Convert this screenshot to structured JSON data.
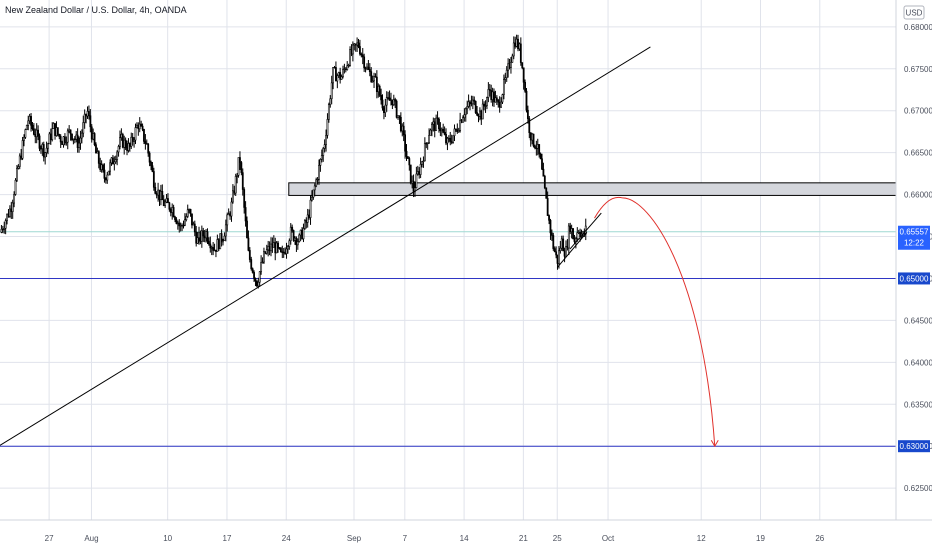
{
  "chart_data": {
    "type": "candlestick",
    "title": "New Zealand Dollar / U.S. Dollar, 4h, OANDA",
    "currency_label": "USD",
    "y_ticks": [
      "0.68000",
      "0.67500",
      "0.67000",
      "0.66500",
      "0.66000",
      "0.65500",
      "0.65000",
      "0.64500",
      "0.64000",
      "0.63500",
      "0.63000",
      "0.62500"
    ],
    "y_tick_values": [
      0.68,
      0.675,
      0.67,
      0.665,
      0.66,
      0.655,
      0.65,
      0.645,
      0.64,
      0.635,
      0.63,
      0.625
    ],
    "ylim": [
      0.6212,
      0.6832
    ],
    "x_ticks": [
      "27",
      "Aug",
      "10",
      "17",
      "24",
      "Sep",
      "7",
      "14",
      "21",
      "25",
      "Oct",
      "12",
      "19",
      "26"
    ],
    "x_tick_days": [
      -4,
      1,
      10,
      17,
      24,
      32,
      38,
      45,
      52,
      56,
      62,
      73,
      80,
      87
    ],
    "xlim": [
      -9.8,
      96.0
    ],
    "current_price": "0.65557",
    "countdown": "12:22",
    "support_levels": [
      "0.65000",
      "0.63000"
    ],
    "resistance_zone": [
      0.6599,
      0.6614
    ],
    "price_path": [
      {
        "day": -9.8,
        "price": 0.6555
      },
      {
        "day": -8.5,
        "price": 0.6585
      },
      {
        "day": -7.5,
        "price": 0.664
      },
      {
        "day": -6.5,
        "price": 0.669
      },
      {
        "day": -5.5,
        "price": 0.667
      },
      {
        "day": -4.5,
        "price": 0.665
      },
      {
        "day": -3.5,
        "price": 0.668
      },
      {
        "day": -2.5,
        "price": 0.6665
      },
      {
        "day": -1.5,
        "price": 0.6675
      },
      {
        "day": -0.5,
        "price": 0.666
      },
      {
        "day": 0.5,
        "price": 0.67
      },
      {
        "day": 1.5,
        "price": 0.665
      },
      {
        "day": 2.5,
        "price": 0.662
      },
      {
        "day": 3.5,
        "price": 0.664
      },
      {
        "day": 4.5,
        "price": 0.6665
      },
      {
        "day": 5.5,
        "price": 0.6655
      },
      {
        "day": 6.5,
        "price": 0.6685
      },
      {
        "day": 7.5,
        "price": 0.666
      },
      {
        "day": 8.5,
        "price": 0.661
      },
      {
        "day": 9.5,
        "price": 0.659
      },
      {
        "day": 10.5,
        "price": 0.6585
      },
      {
        "day": 11.5,
        "price": 0.656
      },
      {
        "day": 12.5,
        "price": 0.658
      },
      {
        "day": 13.5,
        "price": 0.6545
      },
      {
        "day": 14.5,
        "price": 0.6555
      },
      {
        "day": 15.5,
        "price": 0.6535
      },
      {
        "day": 16.5,
        "price": 0.655
      },
      {
        "day": 17.5,
        "price": 0.6585
      },
      {
        "day": 18.5,
        "price": 0.6645
      },
      {
        "day": 19.5,
        "price": 0.653
      },
      {
        "day": 20.5,
        "price": 0.6495
      },
      {
        "day": 21.5,
        "price": 0.653
      },
      {
        "day": 22.5,
        "price": 0.654
      },
      {
        "day": 23.5,
        "price": 0.6525
      },
      {
        "day": 24.5,
        "price": 0.6555
      },
      {
        "day": 25.5,
        "price": 0.6545
      },
      {
        "day": 26.5,
        "price": 0.657
      },
      {
        "day": 27.5,
        "price": 0.6615
      },
      {
        "day": 28.5,
        "price": 0.666
      },
      {
        "day": 29.5,
        "price": 0.6745
      },
      {
        "day": 30.5,
        "price": 0.674
      },
      {
        "day": 31.5,
        "price": 0.6765
      },
      {
        "day": 32.5,
        "price": 0.678
      },
      {
        "day": 33.5,
        "price": 0.675
      },
      {
        "day": 34.5,
        "price": 0.6735
      },
      {
        "day": 35.5,
        "price": 0.6705
      },
      {
        "day": 36.5,
        "price": 0.6715
      },
      {
        "day": 37.5,
        "price": 0.6685
      },
      {
        "day": 38.5,
        "price": 0.663
      },
      {
        "day": 39.0,
        "price": 0.6605
      },
      {
        "day": 40.0,
        "price": 0.664
      },
      {
        "day": 41.0,
        "price": 0.668
      },
      {
        "day": 42.0,
        "price": 0.6685
      },
      {
        "day": 43.0,
        "price": 0.666
      },
      {
        "day": 44.0,
        "price": 0.6675
      },
      {
        "day": 45.0,
        "price": 0.67
      },
      {
        "day": 46.0,
        "price": 0.671
      },
      {
        "day": 47.0,
        "price": 0.6695
      },
      {
        "day": 48.0,
        "price": 0.6725
      },
      {
        "day": 49.0,
        "price": 0.6705
      },
      {
        "day": 50.0,
        "price": 0.674
      },
      {
        "day": 51.0,
        "price": 0.6785
      },
      {
        "day": 51.5,
        "price": 0.6775
      },
      {
        "day": 52.0,
        "price": 0.6745
      },
      {
        "day": 52.5,
        "price": 0.669
      },
      {
        "day": 53.0,
        "price": 0.6665
      },
      {
        "day": 53.5,
        "price": 0.666
      },
      {
        "day": 54.0,
        "price": 0.664
      },
      {
        "day": 54.5,
        "price": 0.6605
      },
      {
        "day": 55.0,
        "price": 0.657
      },
      {
        "day": 55.5,
        "price": 0.654
      },
      {
        "day": 56.0,
        "price": 0.652
      },
      {
        "day": 56.5,
        "price": 0.6545
      },
      {
        "day": 57.0,
        "price": 0.653
      },
      {
        "day": 57.5,
        "price": 0.6565
      },
      {
        "day": 58.0,
        "price": 0.6545
      },
      {
        "day": 58.5,
        "price": 0.656
      },
      {
        "day": 59.0,
        "price": 0.655
      },
      {
        "day": 59.5,
        "price": 0.656
      }
    ],
    "trend_lines": [
      {
        "d1": -9.8,
        "p1": 0.6301,
        "d2": 67.0,
        "p2": 0.6776
      },
      {
        "d1": 56.0,
        "p1": 0.6513,
        "d2": 59.5,
        "p2": 0.6555
      },
      {
        "d1": 57.5,
        "p1": 0.6535,
        "d2": 61.2,
        "p2": 0.6578
      }
    ],
    "projection": {
      "start_day": 60.4,
      "start_price": 0.6572,
      "peak_day": 63.7,
      "peak_price": 0.6596,
      "end_day": 74.6,
      "end_price": 0.63
    },
    "colors": {
      "bullish": "#ffffff",
      "bearish": "#000000",
      "wick": "#000000",
      "support": "#2f36c4",
      "label_bg": "#1848cc",
      "current": "#2962ff",
      "projection": "#e0312c",
      "zone_fill": "#d4d6dc",
      "zone_stroke": "#000000",
      "trend": "#000000",
      "grid": "#e0e3eb",
      "price_line": "#9fd8d2"
    }
  }
}
